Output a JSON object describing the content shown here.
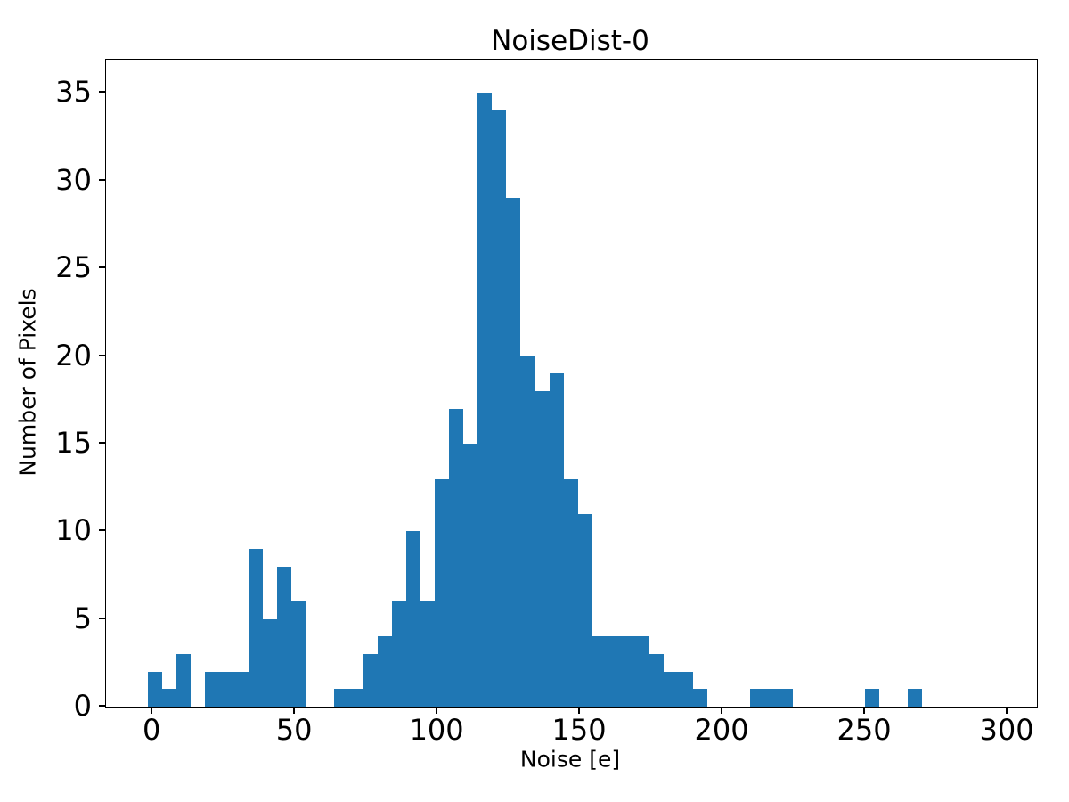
{
  "chart_data": {
    "type": "bar",
    "subtype": "histogram",
    "title": "NoiseDist-0",
    "xlabel": "Noise [e]",
    "ylabel": "Number of Pixels",
    "bar_color": "#1f77b4",
    "axis_color": "#000000",
    "background_color": "#ffffff",
    "bin_start": -1.6,
    "bin_width": 5.03,
    "counts": [
      2,
      1,
      3,
      0,
      2,
      2,
      2,
      9,
      5,
      8,
      6,
      0,
      0,
      1,
      1,
      3,
      4,
      6,
      10,
      6,
      13,
      17,
      15,
      35,
      34,
      29,
      20,
      18,
      19,
      13,
      11,
      4,
      4,
      4,
      4,
      3,
      2,
      2,
      1,
      0,
      0,
      0,
      1,
      1,
      1,
      0,
      0,
      0,
      0,
      0,
      1,
      0,
      0,
      1
    ],
    "xticks": [
      0,
      50,
      100,
      150,
      200,
      250,
      300
    ],
    "yticks": [
      0,
      5,
      10,
      15,
      20,
      25,
      30,
      35
    ],
    "xlim": [
      -16.3,
      310.3
    ],
    "ylim": [
      0,
      36.9
    ],
    "grid": false,
    "legend": null
  }
}
